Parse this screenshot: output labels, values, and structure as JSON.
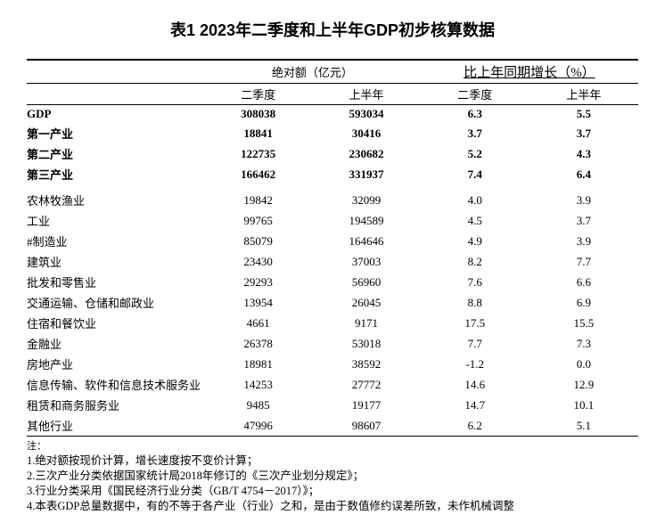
{
  "title": "表1  2023年二季度和上半年GDP初步核算数据",
  "headers": {
    "abs_group": "绝对额（亿元）",
    "growth_group": "比上年同期增长（%）",
    "q2": "二季度",
    "h1": "上半年"
  },
  "main_rows": [
    {
      "label": "GDP",
      "abs_q2": "308038",
      "abs_h1": "593034",
      "g_q2": "6.3",
      "g_h1": "5.5"
    },
    {
      "label": "第一产业",
      "abs_q2": "18841",
      "abs_h1": "30416",
      "g_q2": "3.7",
      "g_h1": "3.7"
    },
    {
      "label": "第二产业",
      "abs_q2": "122735",
      "abs_h1": "230682",
      "g_q2": "5.2",
      "g_h1": "4.3"
    },
    {
      "label": "第三产业",
      "abs_q2": "166462",
      "abs_h1": "331937",
      "g_q2": "7.4",
      "g_h1": "6.4"
    }
  ],
  "detail_rows": [
    {
      "label": "农林牧渔业",
      "abs_q2": "19842",
      "abs_h1": "32099",
      "g_q2": "4.0",
      "g_h1": "3.9"
    },
    {
      "label": "工业",
      "abs_q2": "99765",
      "abs_h1": "194589",
      "g_q2": "4.5",
      "g_h1": "3.7"
    },
    {
      "label": "  #制造业",
      "abs_q2": "85079",
      "abs_h1": "164646",
      "g_q2": "4.9",
      "g_h1": "3.9"
    },
    {
      "label": "建筑业",
      "abs_q2": "23430",
      "abs_h1": "37003",
      "g_q2": "8.2",
      "g_h1": "7.7"
    },
    {
      "label": "批发和零售业",
      "abs_q2": "29293",
      "abs_h1": "56960",
      "g_q2": "7.6",
      "g_h1": "6.6"
    },
    {
      "label": "交通运输、仓储和邮政业",
      "abs_q2": "13954",
      "abs_h1": "26045",
      "g_q2": "8.8",
      "g_h1": "6.9"
    },
    {
      "label": "住宿和餐饮业",
      "abs_q2": "4661",
      "abs_h1": "9171",
      "g_q2": "17.5",
      "g_h1": "15.5"
    },
    {
      "label": "金融业",
      "abs_q2": "26378",
      "abs_h1": "53018",
      "g_q2": "7.7",
      "g_h1": "7.3"
    },
    {
      "label": "房地产业",
      "abs_q2": "18981",
      "abs_h1": "38592",
      "g_q2": "-1.2",
      "g_h1": "0.0"
    },
    {
      "label": "信息传输、软件和信息技术服务业",
      "abs_q2": "14253",
      "abs_h1": "27772",
      "g_q2": "14.6",
      "g_h1": "12.9"
    },
    {
      "label": "租赁和商务服务业",
      "abs_q2": "9485",
      "abs_h1": "19177",
      "g_q2": "14.7",
      "g_h1": "10.1"
    },
    {
      "label": "其他行业",
      "abs_q2": "47996",
      "abs_h1": "98607",
      "g_q2": "6.2",
      "g_h1": "5.1"
    }
  ],
  "notes_label": "注：",
  "notes": [
    "1.绝对额按现价计算，增长速度按不变价计算；",
    "2.三次产业分类依据国家统计局2018年修订的《三次产业划分规定》；",
    "3.行业分类采用《国民经济行业分类（GB/T 4754－2017）》；",
    "4.本表GDP总量数据中，有的不等于各产业（行业）之和，是由于数值修约误差所致，未作机械调整"
  ]
}
